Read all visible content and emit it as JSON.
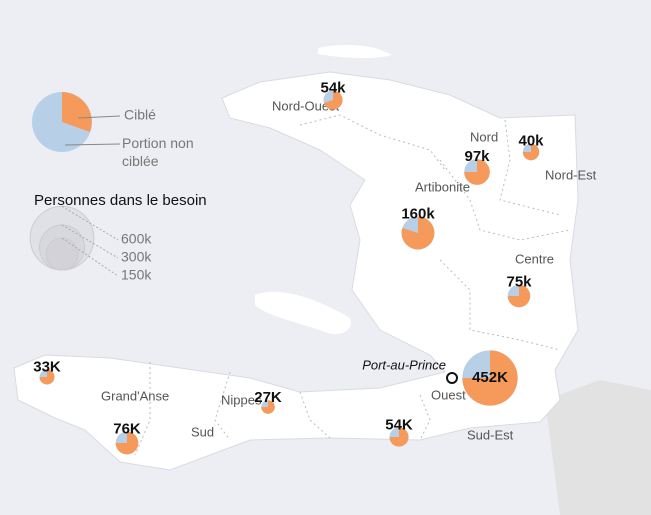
{
  "legend": {
    "targeted": "Ciblé",
    "untargeted": "Portion non ciblée",
    "size_title": "Personnes dans le besoin",
    "sizes": [
      {
        "value": 600,
        "label": "600k"
      },
      {
        "value": 300,
        "label": "300k"
      },
      {
        "value": 150,
        "label": "150k"
      }
    ]
  },
  "regions": [
    "Nord-Ouest",
    "Nord",
    "Nord-Est",
    "Artibonite",
    "Centre",
    "Ouest",
    "Sud-Est",
    "Sud",
    "Nippes",
    "Grand'Anse"
  ],
  "capital": "Port-au-Prince",
  "bubbles": [
    {
      "label": "54k",
      "value": 54,
      "targeted": 70
    },
    {
      "label": "97k",
      "value": 97,
      "targeted": 75
    },
    {
      "label": "40k",
      "value": 40,
      "targeted": 75
    },
    {
      "label": "160k",
      "value": 160,
      "targeted": 80
    },
    {
      "label": "75k",
      "value": 75,
      "targeted": 75
    },
    {
      "label": "452K",
      "value": 452,
      "targeted": 75
    },
    {
      "label": "33K",
      "value": 33,
      "targeted": 75
    },
    {
      "label": "76K",
      "value": 76,
      "targeted": 75
    },
    {
      "label": "27K",
      "value": 27,
      "targeted": 75
    },
    {
      "label": "54K",
      "value": 54,
      "targeted": 75
    }
  ]
}
